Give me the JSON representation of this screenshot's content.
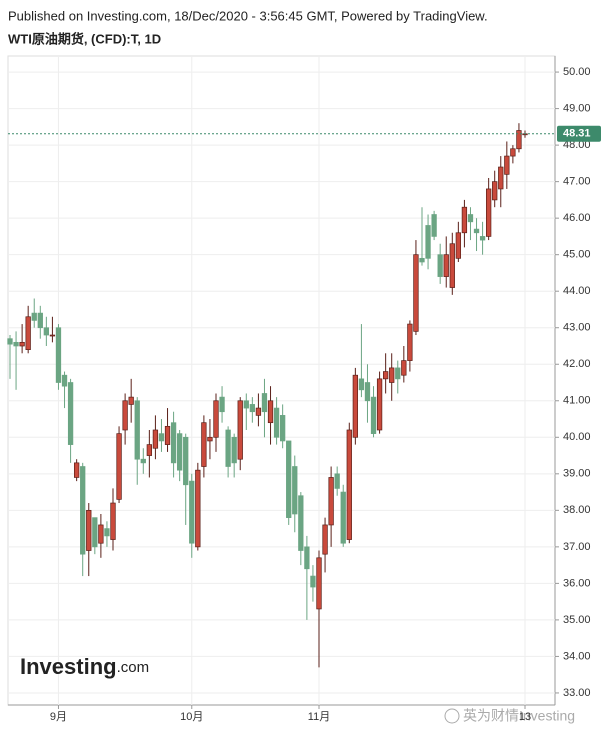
{
  "chart_data": {
    "type": "candlestick",
    "header": "Published on Investing.com, 18/Dec/2020 - 3:56:45 GMT, Powered by TradingView.",
    "title": "WTI原油期货, (CFD):T, 1D",
    "logo": "Investing",
    "logo_suffix": ".com",
    "watermark": "英为财情Investing",
    "categories": [
      null,
      null,
      null,
      null,
      null,
      null,
      null,
      null,
      "9月",
      null,
      null,
      null,
      null,
      null,
      null,
      null,
      null,
      null,
      null,
      null,
      null,
      null,
      null,
      null,
      null,
      null,
      null,
      null,
      null,
      null,
      "10月",
      null,
      null,
      null,
      null,
      null,
      null,
      null,
      null,
      null,
      null,
      null,
      null,
      null,
      null,
      null,
      null,
      null,
      null,
      null,
      null,
      "11月",
      null,
      null,
      null,
      null,
      null,
      null,
      null,
      null,
      null,
      null,
      null,
      null,
      null,
      null,
      null,
      null,
      null,
      null,
      null,
      null,
      null,
      null,
      null,
      null,
      null,
      null,
      null,
      null,
      null,
      null,
      null,
      null,
      null,
      "13"
    ],
    "open": [
      42.7,
      42.6,
      42.5,
      42.4,
      43.4,
      43.4,
      43.0,
      42.8,
      43.0,
      41.7,
      41.5,
      38.9,
      39.2,
      36.9,
      37.8,
      37.1,
      37.5,
      37.2,
      38.3,
      40.2,
      40.9,
      41.0,
      39.4,
      39.5,
      39.7,
      40.1,
      39.8,
      40.4,
      40.1,
      40.0,
      38.8,
      37.0,
      39.2,
      39.9,
      40.0,
      41.1,
      40.2,
      40.0,
      39.4,
      41.0,
      40.9,
      40.6,
      41.2,
      40.4,
      40.8,
      40.6,
      39.9,
      39.2,
      38.4,
      37.0,
      36.2,
      35.3,
      36.8,
      37.6,
      39.0,
      38.5,
      37.2,
      40.0,
      41.6,
      41.5,
      41.1,
      40.2,
      41.6,
      41.5,
      41.9,
      41.7,
      42.1,
      42.9,
      44.9,
      45.8,
      46.1,
      45.0,
      44.4,
      44.1,
      44.9,
      45.6,
      46.1,
      45.7,
      45.5,
      45.5,
      46.5,
      46.8,
      47.2,
      47.7,
      47.9,
      48.3
    ],
    "high": [
      42.8,
      42.9,
      43.1,
      43.6,
      43.8,
      43.6,
      43.3,
      43.3,
      43.1,
      41.8,
      41.6,
      39.4,
      39.3,
      38.2,
      37.8,
      37.9,
      37.7,
      38.6,
      40.3,
      41.2,
      41.6,
      41.1,
      39.7,
      40.2,
      40.6,
      40.5,
      40.8,
      40.7,
      40.2,
      40.1,
      39.0,
      39.3,
      40.6,
      40.5,
      41.2,
      41.4,
      40.3,
      40.1,
      41.1,
      41.2,
      41.1,
      41.2,
      41.6,
      41.4,
      41.1,
      40.9,
      39.9,
      39.5,
      38.5,
      37.3,
      36.5,
      36.9,
      37.8,
      39.2,
      39.2,
      38.7,
      40.4,
      41.9,
      43.1,
      42.0,
      41.4,
      41.8,
      42.3,
      42.3,
      42.1,
      42.5,
      43.2,
      45.4,
      46.3,
      46.1,
      46.2,
      45.3,
      45.5,
      45.6,
      45.9,
      46.5,
      46.3,
      46.0,
      45.9,
      47.1,
      47.3,
      47.7,
      48.1,
      48.0,
      48.6,
      48.4
    ],
    "low": [
      41.6,
      41.3,
      42.3,
      42.3,
      43.0,
      42.7,
      42.5,
      42.6,
      41.3,
      40.8,
      39.3,
      38.8,
      36.2,
      36.2,
      36.8,
      36.7,
      37.0,
      36.9,
      38.2,
      39.8,
      40.4,
      38.7,
      39.0,
      38.9,
      39.4,
      39.6,
      39.6,
      38.9,
      38.8,
      37.6,
      36.7,
      36.9,
      38.9,
      39.4,
      39.6,
      40.4,
      38.9,
      38.9,
      39.1,
      40.2,
      40.4,
      40.3,
      40.0,
      39.8,
      39.8,
      39.7,
      37.6,
      37.4,
      36.5,
      35.0,
      35.5,
      33.7,
      36.3,
      37.0,
      38.4,
      37.0,
      37.1,
      39.8,
      41.1,
      40.4,
      40.0,
      40.1,
      41.2,
      41.0,
      41.2,
      41.5,
      41.8,
      42.8,
      44.7,
      44.6,
      45.4,
      44.2,
      44.1,
      43.9,
      44.8,
      45.2,
      45.4,
      45.1,
      45.0,
      45.4,
      46.3,
      46.3,
      46.8,
      47.5,
      47.8,
      48.2
    ],
    "close": [
      42.55,
      42.5,
      42.6,
      43.3,
      43.2,
      43.0,
      42.8,
      42.8,
      41.5,
      41.4,
      39.8,
      39.3,
      36.8,
      38.0,
      37.0,
      37.6,
      37.3,
      38.2,
      40.1,
      41.0,
      41.1,
      39.4,
      39.3,
      39.8,
      40.2,
      39.9,
      40.3,
      39.3,
      39.1,
      38.7,
      37.1,
      39.1,
      40.4,
      40.0,
      41.0,
      40.7,
      39.2,
      39.3,
      41.0,
      40.8,
      40.7,
      40.8,
      40.7,
      41.0,
      40.0,
      39.9,
      37.8,
      37.9,
      36.9,
      36.4,
      35.9,
      36.7,
      37.6,
      38.9,
      38.6,
      37.1,
      40.2,
      41.7,
      41.3,
      41.0,
      40.1,
      41.6,
      41.8,
      41.9,
      41.6,
      42.1,
      43.1,
      45.0,
      44.8,
      44.9,
      45.5,
      44.4,
      45.0,
      45.3,
      45.6,
      46.3,
      45.9,
      45.6,
      45.4,
      46.8,
      47.0,
      47.4,
      47.7,
      47.9,
      48.4,
      48.31
    ],
    "last_price": 48.31,
    "up_color": "#c94a3c",
    "down_color": "#6ba583",
    "grid": true,
    "ylim": [
      32.67,
      50.44
    ],
    "yticks": [
      {
        "value": 33,
        "label": "33.00"
      },
      {
        "value": 34,
        "label": "34.00"
      },
      {
        "value": 35,
        "label": "35.00"
      },
      {
        "value": 36,
        "label": "36.00"
      },
      {
        "value": 37,
        "label": "37.00"
      },
      {
        "value": 38,
        "label": "38.00"
      },
      {
        "value": 39,
        "label": "39.00"
      },
      {
        "value": 40,
        "label": "40.00"
      },
      {
        "value": 41,
        "label": "41.00"
      },
      {
        "value": 42,
        "label": "42.00"
      },
      {
        "value": 43,
        "label": "43.00"
      },
      {
        "value": 44,
        "label": "44.00"
      },
      {
        "value": 45,
        "label": "45.00"
      },
      {
        "value": 46,
        "label": "46.00"
      },
      {
        "value": 47,
        "label": "47.00"
      },
      {
        "value": 48,
        "label": "48.00"
      },
      {
        "value": 49,
        "label": "49.00"
      },
      {
        "value": 50,
        "label": "50.00"
      }
    ]
  }
}
